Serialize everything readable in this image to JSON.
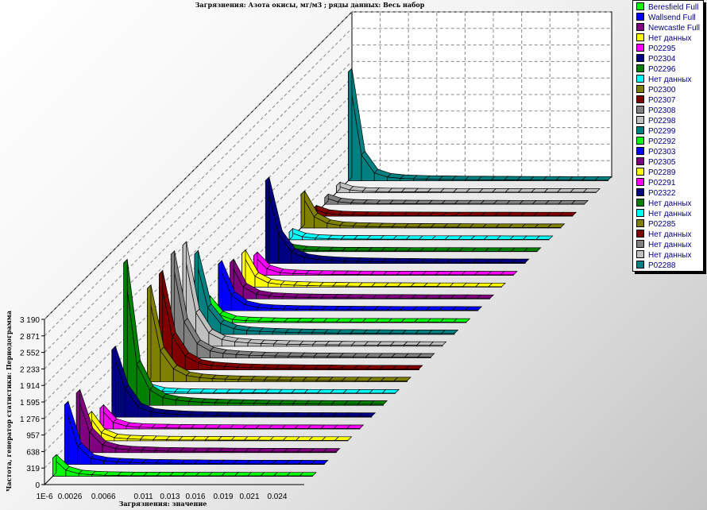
{
  "chart_data": {
    "type": "area",
    "variant": "3d-stacked-ribbons",
    "title": "Загрязнения: Азота окисы,  мг/м3 ; ряды данных: Весь набор",
    "xlabel": "Загрязнения: значение",
    "ylabel": "Частота, генератор статистики: Периодограмма",
    "x_tick_labels": [
      "1E-6",
      "0.0026",
      "0.0066",
      "0.011",
      "0.013",
      "0.016",
      "0.019",
      "0.021",
      "0.024"
    ],
    "y_tick_labels": [
      "0",
      "319",
      "638",
      "957",
      "1 276",
      "1 595",
      "1 914",
      "2 233",
      "2 552",
      "2 871",
      "3 190"
    ],
    "ylim": [
      0,
      3190
    ],
    "grid": true,
    "legend_position": "top-right",
    "series": [
      {
        "name": "Beresfield Full",
        "color": "#00ff00",
        "values": [
          350,
          120,
          50,
          30,
          20,
          15,
          12,
          10,
          10,
          9,
          9,
          8,
          8,
          8,
          8,
          7,
          7,
          7,
          7,
          7
        ]
      },
      {
        "name": "Wallsend Full",
        "color": "#0000ff",
        "values": [
          1150,
          350,
          120,
          70,
          50,
          40,
          32,
          28,
          25,
          22,
          20,
          18,
          17,
          16,
          15,
          14,
          13,
          12,
          12,
          11
        ]
      },
      {
        "name": "Newcastle Full",
        "color": "#800080",
        "values": [
          1150,
          400,
          150,
          80,
          55,
          45,
          35,
          30,
          27,
          24,
          22,
          20,
          18,
          17,
          16,
          15,
          14,
          13,
          12,
          11
        ]
      },
      {
        "name": "Нет данных",
        "color": "#ffff00",
        "values": [
          500,
          160,
          60,
          40,
          30,
          25,
          20,
          18,
          16,
          15,
          14,
          13,
          12,
          12,
          11,
          11,
          10,
          10,
          10,
          10
        ]
      },
      {
        "name": "P02295",
        "color": "#ff00ff",
        "values": [
          400,
          130,
          55,
          35,
          28,
          22,
          18,
          16,
          15,
          14,
          13,
          12,
          11,
          11,
          10,
          10,
          10,
          9,
          9,
          9
        ]
      },
      {
        "name": "P02304",
        "color": "#000080",
        "values": [
          1300,
          550,
          200,
          100,
          70,
          55,
          45,
          38,
          33,
          30,
          27,
          25,
          23,
          21,
          20,
          19,
          18,
          17,
          16,
          15
        ]
      },
      {
        "name": "P02296",
        "color": "#008000",
        "values": [
          2750,
          800,
          300,
          150,
          100,
          75,
          60,
          50,
          45,
          40,
          36,
          33,
          30,
          28,
          26,
          24,
          23,
          22,
          21,
          20
        ]
      },
      {
        "name": "Нет данных",
        "color": "#00ffff",
        "values": [
          320,
          110,
          45,
          30,
          24,
          20,
          17,
          15,
          14,
          13,
          12,
          11,
          11,
          10,
          10,
          9,
          9,
          9,
          8,
          8
        ]
      },
      {
        "name": "P02300",
        "color": "#808000",
        "values": [
          1800,
          600,
          250,
          120,
          80,
          60,
          50,
          42,
          37,
          33,
          30,
          28,
          26,
          24,
          22,
          21,
          20,
          19,
          18,
          17
        ]
      },
      {
        "name": "P02307",
        "color": "#800000",
        "values": [
          1850,
          650,
          270,
          130,
          85,
          65,
          52,
          44,
          38,
          34,
          31,
          29,
          27,
          25,
          23,
          22,
          21,
          20,
          19,
          18
        ]
      },
      {
        "name": "P02308",
        "color": "#808080",
        "values": [
          2000,
          700,
          280,
          140,
          90,
          68,
          54,
          46,
          40,
          36,
          33,
          30,
          28,
          26,
          24,
          23,
          22,
          21,
          20,
          19
        ]
      },
      {
        "name": "P02298",
        "color": "#c0c0c0",
        "values": [
          1950,
          650,
          260,
          130,
          85,
          64,
          52,
          44,
          38,
          34,
          31,
          29,
          27,
          25,
          23,
          22,
          21,
          20,
          19,
          18
        ]
      },
      {
        "name": "P02299",
        "color": "#008080",
        "values": [
          1550,
          520,
          210,
          110,
          75,
          58,
          47,
          40,
          35,
          31,
          28,
          26,
          24,
          22,
          21,
          20,
          19,
          18,
          17,
          16
        ]
      },
      {
        "name": "P02292",
        "color": "#00ff00",
        "values": [
          450,
          150,
          60,
          38,
          29,
          23,
          19,
          17,
          15,
          14,
          13,
          12,
          11,
          11,
          10,
          10,
          9,
          9,
          9,
          8
        ]
      },
      {
        "name": "P02303",
        "color": "#0000ff",
        "values": [
          900,
          300,
          120,
          65,
          45,
          36,
          30,
          26,
          23,
          21,
          19,
          18,
          17,
          16,
          15,
          14,
          13,
          12,
          12,
          11
        ]
      },
      {
        "name": "P02305",
        "color": "#800080",
        "values": [
          700,
          230,
          95,
          55,
          40,
          32,
          27,
          23,
          21,
          19,
          17,
          16,
          15,
          14,
          13,
          12,
          12,
          11,
          11,
          10
        ]
      },
      {
        "name": "P02289",
        "color": "#ffff00",
        "values": [
          650,
          210,
          85,
          50,
          37,
          30,
          25,
          22,
          20,
          18,
          16,
          15,
          14,
          13,
          12,
          12,
          11,
          11,
          10,
          10
        ]
      },
      {
        "name": "P02291",
        "color": "#ff00ff",
        "values": [
          380,
          125,
          52,
          33,
          26,
          21,
          18,
          16,
          14,
          13,
          12,
          11,
          11,
          10,
          10,
          9,
          9,
          9,
          8,
          8
        ]
      },
      {
        "name": "P02322",
        "color": "#000080",
        "values": [
          1600,
          560,
          220,
          115,
          78,
          60,
          48,
          41,
          36,
          32,
          29,
          27,
          25,
          23,
          22,
          21,
          20,
          19,
          18,
          17
        ]
      },
      {
        "name": "Нет данных",
        "color": "#008000",
        "values": [
          180,
          70,
          35,
          24,
          19,
          16,
          14,
          13,
          12,
          11,
          10,
          10,
          9,
          9,
          9,
          8,
          8,
          8,
          8,
          7
        ]
      },
      {
        "name": "Нет данных",
        "color": "#00ffff",
        "values": [
          150,
          60,
          30,
          21,
          17,
          15,
          13,
          12,
          11,
          10,
          10,
          9,
          9,
          8,
          8,
          8,
          8,
          7,
          7,
          7
        ]
      },
      {
        "name": "P02285",
        "color": "#808000",
        "values": [
          650,
          220,
          90,
          50,
          36,
          29,
          24,
          21,
          19,
          17,
          16,
          15,
          14,
          13,
          12,
          12,
          11,
          11,
          10,
          10
        ]
      },
      {
        "name": "Нет данных",
        "color": "#800000",
        "values": [
          140,
          55,
          28,
          20,
          16,
          14,
          12,
          11,
          10,
          10,
          9,
          9,
          8,
          8,
          8,
          8,
          7,
          7,
          7,
          7
        ]
      },
      {
        "name": "Нет данных",
        "color": "#808080",
        "values": [
          130,
          50,
          26,
          19,
          15,
          13,
          12,
          11,
          10,
          9,
          9,
          8,
          8,
          8,
          7,
          7,
          7,
          7,
          7,
          6
        ]
      },
      {
        "name": "Нет данных",
        "color": "#c0c0c0",
        "values": [
          130,
          50,
          26,
          19,
          15,
          13,
          12,
          11,
          10,
          9,
          9,
          8,
          8,
          8,
          7,
          7,
          7,
          7,
          7,
          6
        ]
      },
      {
        "name": "P02288",
        "color": "#008080",
        "values": [
          2100,
          500,
          150,
          70,
          45,
          35,
          28,
          24,
          21,
          19,
          17,
          16,
          15,
          14,
          13,
          12,
          12,
          11,
          11,
          10
        ]
      }
    ]
  }
}
